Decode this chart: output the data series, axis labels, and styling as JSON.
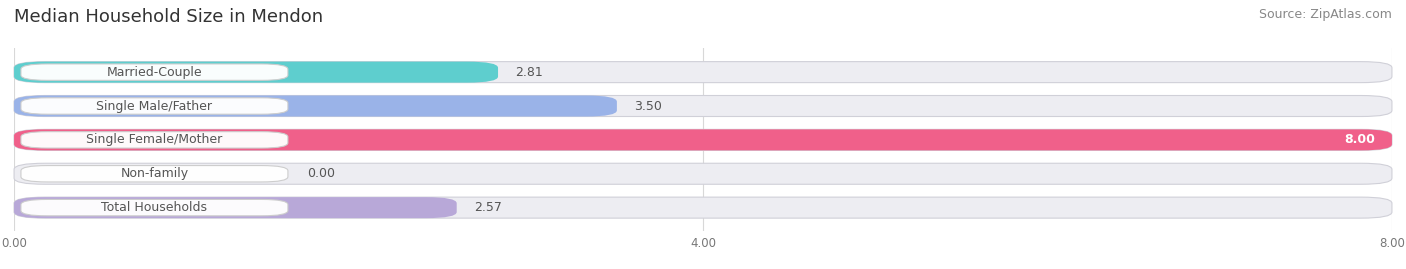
{
  "title": "Median Household Size in Mendon",
  "source": "Source: ZipAtlas.com",
  "categories": [
    "Married-Couple",
    "Single Male/Father",
    "Single Female/Mother",
    "Non-family",
    "Total Households"
  ],
  "values": [
    2.81,
    3.5,
    8.0,
    0.0,
    2.57
  ],
  "bar_colors": [
    "#5ecece",
    "#9ab3e8",
    "#f0608a",
    "#f5c896",
    "#b8a8d8"
  ],
  "xlim": [
    0,
    8.0
  ],
  "xticks": [
    0.0,
    4.0,
    8.0
  ],
  "xticklabels": [
    "0.00",
    "4.00",
    "8.00"
  ],
  "background_color": "#ffffff",
  "bar_background_color": "#ededf2",
  "title_fontsize": 13,
  "source_fontsize": 9,
  "label_fontsize": 9,
  "value_fontsize": 9,
  "bar_height": 0.62
}
